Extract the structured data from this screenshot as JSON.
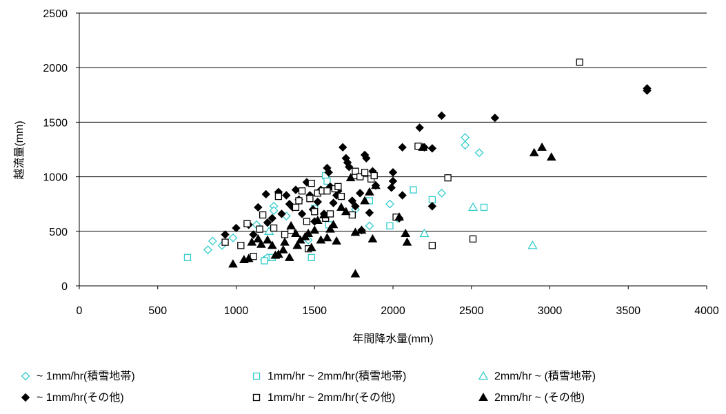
{
  "chart_data": {
    "type": "scatter",
    "title": "",
    "xlabel": "年間降水量(mm)",
    "ylabel": "越流量(mm)",
    "xlim": [
      0,
      4000
    ],
    "ylim": [
      0,
      2500
    ],
    "x_ticks": [
      "0",
      "500",
      "1000",
      "1500",
      "2000",
      "2500",
      "3000",
      "3500",
      "4000"
    ],
    "y_ticks": [
      "0",
      "500",
      "1000",
      "1500",
      "2000",
      "2500"
    ],
    "grid": "horizontal",
    "legend_position": "bottom",
    "colors": {
      "snow": "#33cccc",
      "other": "#000000"
    },
    "series": [
      {
        "name": "~ 1mm/hr(積雪地帯)",
        "marker": "diamond",
        "fill": false,
        "color": "#33cccc",
        "points": [
          [
            820,
            330
          ],
          [
            850,
            410
          ],
          [
            910,
            370
          ],
          [
            980,
            440
          ],
          [
            1130,
            560
          ],
          [
            1180,
            240
          ],
          [
            1200,
            260
          ],
          [
            1240,
            730
          ],
          [
            1240,
            690
          ],
          [
            1320,
            640
          ],
          [
            1460,
            420
          ],
          [
            1760,
            700
          ],
          [
            1850,
            550
          ],
          [
            1980,
            750
          ],
          [
            2030,
            620
          ],
          [
            2310,
            850
          ],
          [
            2460,
            1360
          ],
          [
            2460,
            1290
          ],
          [
            2550,
            1220
          ]
        ]
      },
      {
        "name": "1mm/hr ~ 2mm/hr(積雪地帯)",
        "marker": "square",
        "fill": false,
        "color": "#33cccc",
        "points": [
          [
            690,
            260
          ],
          [
            1180,
            230
          ],
          [
            1230,
            260
          ],
          [
            1480,
            260
          ],
          [
            1500,
            710
          ],
          [
            1570,
            1010
          ],
          [
            1580,
            960
          ],
          [
            1590,
            560
          ],
          [
            1850,
            780
          ],
          [
            1980,
            550
          ],
          [
            2130,
            880
          ],
          [
            2250,
            790
          ],
          [
            2580,
            720
          ]
        ]
      },
      {
        "name": "2mm/hr ~ (積雪地帯)",
        "marker": "triangle",
        "fill": false,
        "color": "#33cccc",
        "points": [
          [
            1210,
            500
          ],
          [
            2200,
            480
          ],
          [
            2510,
            720
          ],
          [
            2890,
            370
          ]
        ]
      },
      {
        "name": "~ 1mm/hr(その他)",
        "marker": "diamond",
        "fill": true,
        "color": "#000000",
        "points": [
          [
            930,
            470
          ],
          [
            1000,
            530
          ],
          [
            1080,
            560
          ],
          [
            1110,
            470
          ],
          [
            1140,
            720
          ],
          [
            1190,
            840
          ],
          [
            1200,
            580
          ],
          [
            1230,
            620
          ],
          [
            1270,
            860
          ],
          [
            1290,
            660
          ],
          [
            1320,
            830
          ],
          [
            1340,
            750
          ],
          [
            1360,
            720
          ],
          [
            1380,
            880
          ],
          [
            1400,
            790
          ],
          [
            1420,
            660
          ],
          [
            1450,
            950
          ],
          [
            1470,
            830
          ],
          [
            1490,
            700
          ],
          [
            1500,
            590
          ],
          [
            1520,
            770
          ],
          [
            1540,
            880
          ],
          [
            1560,
            660
          ],
          [
            1580,
            1080
          ],
          [
            1590,
            1040
          ],
          [
            1600,
            910
          ],
          [
            1620,
            760
          ],
          [
            1640,
            830
          ],
          [
            1650,
            870
          ],
          [
            1680,
            1270
          ],
          [
            1700,
            1170
          ],
          [
            1710,
            1130
          ],
          [
            1720,
            1090
          ],
          [
            1740,
            780
          ],
          [
            1760,
            730
          ],
          [
            1790,
            850
          ],
          [
            1800,
            510
          ],
          [
            1820,
            1200
          ],
          [
            1830,
            1170
          ],
          [
            1850,
            670
          ],
          [
            1870,
            1050
          ],
          [
            1890,
            920
          ],
          [
            1990,
            900
          ],
          [
            2000,
            1040
          ],
          [
            2000,
            960
          ],
          [
            2040,
            620
          ],
          [
            2060,
            1270
          ],
          [
            2060,
            830
          ],
          [
            2170,
            1450
          ],
          [
            2200,
            1270
          ],
          [
            2250,
            1260
          ],
          [
            2250,
            730
          ],
          [
            2310,
            1560
          ],
          [
            2650,
            1540
          ],
          [
            3620,
            1810
          ],
          [
            3620,
            1790
          ]
        ]
      },
      {
        "name": "1mm/hr ~ 2mm/hr(その他)",
        "marker": "square",
        "fill": false,
        "color": "#000000",
        "points": [
          [
            930,
            400
          ],
          [
            1030,
            370
          ],
          [
            1070,
            570
          ],
          [
            1110,
            270
          ],
          [
            1150,
            520
          ],
          [
            1170,
            650
          ],
          [
            1240,
            530
          ],
          [
            1270,
            820
          ],
          [
            1310,
            470
          ],
          [
            1350,
            510
          ],
          [
            1380,
            720
          ],
          [
            1400,
            780
          ],
          [
            1420,
            870
          ],
          [
            1450,
            590
          ],
          [
            1460,
            340
          ],
          [
            1470,
            800
          ],
          [
            1480,
            940
          ],
          [
            1500,
            680
          ],
          [
            1520,
            850
          ],
          [
            1550,
            870
          ],
          [
            1570,
            620
          ],
          [
            1580,
            870
          ],
          [
            1600,
            660
          ],
          [
            1630,
            890
          ],
          [
            1650,
            910
          ],
          [
            1670,
            820
          ],
          [
            1740,
            650
          ],
          [
            1760,
            1010
          ],
          [
            1760,
            1050
          ],
          [
            1790,
            1000
          ],
          [
            1820,
            1040
          ],
          [
            1860,
            980
          ],
          [
            1880,
            1010
          ],
          [
            2020,
            630
          ],
          [
            2160,
            1280
          ],
          [
            2250,
            370
          ],
          [
            2350,
            990
          ],
          [
            2510,
            430
          ],
          [
            3190,
            2050
          ]
        ]
      },
      {
        "name": "2mm/hr ~ (その他)",
        "marker": "triangle",
        "fill": true,
        "color": "#000000",
        "points": [
          [
            980,
            200
          ],
          [
            1050,
            240
          ],
          [
            1080,
            250
          ],
          [
            1100,
            400
          ],
          [
            1140,
            430
          ],
          [
            1160,
            380
          ],
          [
            1200,
            420
          ],
          [
            1230,
            370
          ],
          [
            1250,
            280
          ],
          [
            1270,
            290
          ],
          [
            1300,
            330
          ],
          [
            1310,
            400
          ],
          [
            1340,
            260
          ],
          [
            1350,
            550
          ],
          [
            1380,
            480
          ],
          [
            1390,
            370
          ],
          [
            1410,
            420
          ],
          [
            1440,
            450
          ],
          [
            1460,
            480
          ],
          [
            1480,
            350
          ],
          [
            1500,
            510
          ],
          [
            1520,
            600
          ],
          [
            1540,
            420
          ],
          [
            1560,
            650
          ],
          [
            1580,
            440
          ],
          [
            1600,
            520
          ],
          [
            1620,
            560
          ],
          [
            1640,
            410
          ],
          [
            1670,
            720
          ],
          [
            1700,
            680
          ],
          [
            1730,
            990
          ],
          [
            1760,
            110
          ],
          [
            1760,
            490
          ],
          [
            1800,
            510
          ],
          [
            1820,
            780
          ],
          [
            1850,
            860
          ],
          [
            1870,
            430
          ],
          [
            1890,
            920
          ],
          [
            2040,
            630
          ],
          [
            2080,
            480
          ],
          [
            2090,
            400
          ],
          [
            2190,
            1270
          ],
          [
            2900,
            1220
          ],
          [
            2950,
            1270
          ],
          [
            3010,
            1180
          ]
        ]
      }
    ]
  }
}
